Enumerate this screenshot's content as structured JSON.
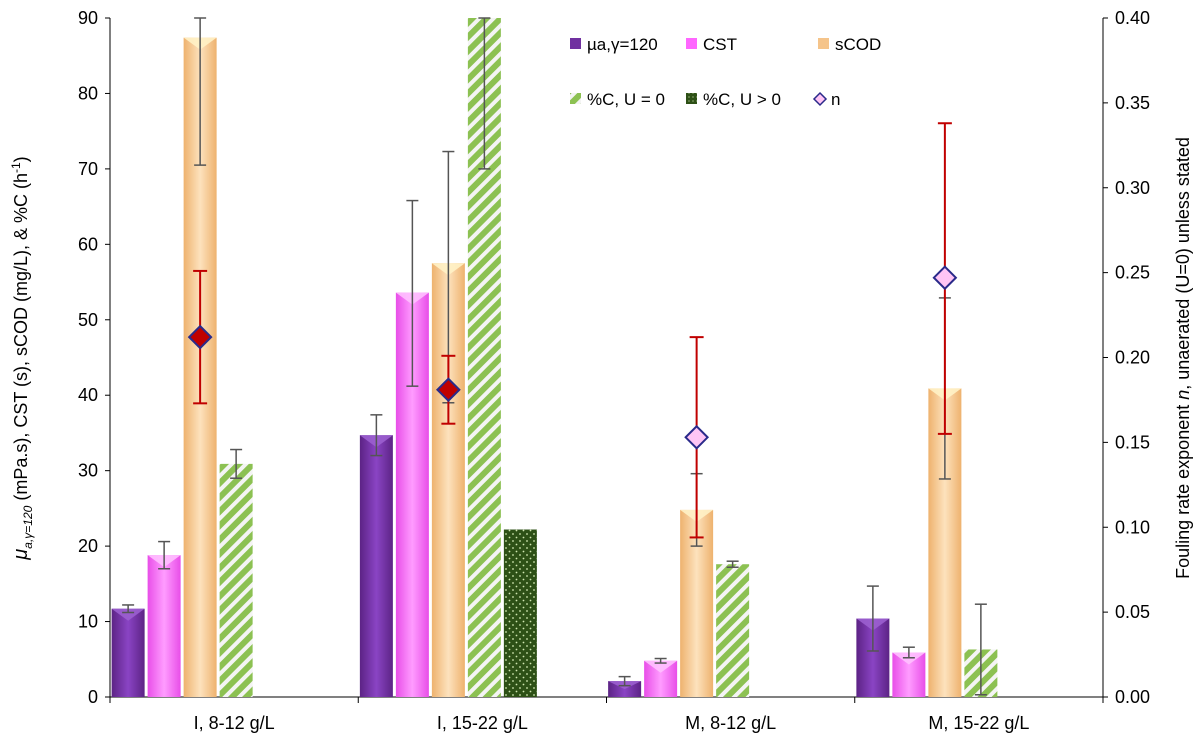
{
  "chart_data": {
    "type": "bar",
    "categories": [
      "I, 8-12 g/L",
      "I, 15-22 g/L",
      "M,  8-12 g/L",
      "M,  15-22 g/L"
    ],
    "series": [
      {
        "name": "µa,γ=120",
        "axis": "left",
        "color": "#7030a0",
        "values": [
          11.7,
          34.7,
          2.1,
          10.4
        ],
        "err_low": [
          0.5,
          2.7,
          0.6,
          4.3
        ],
        "err_high": [
          0.5,
          2.7,
          0.6,
          4.3
        ]
      },
      {
        "name": "CST",
        "axis": "left",
        "color": "#ff66ff",
        "values": [
          18.8,
          53.6,
          4.8,
          5.9
        ],
        "err_low": [
          1.8,
          12.4,
          0.3,
          0.7
        ],
        "err_high": [
          1.8,
          12.2,
          0.3,
          0.7
        ]
      },
      {
        "name": "sCOD",
        "axis": "left",
        "color": "#f5c48a",
        "values": [
          87.4,
          57.5,
          24.8,
          40.9
        ],
        "err_low": [
          16.9,
          18.5,
          4.8,
          12.0
        ],
        "err_high": [
          2.6,
          14.8,
          4.8,
          12.0
        ]
      },
      {
        "name": "%C, U = 0",
        "axis": "left",
        "color": "#8cc152",
        "values": [
          30.9,
          90.0,
          17.6,
          6.3
        ],
        "err_low": [
          1.9,
          20.0,
          0.4,
          6.0
        ],
        "err_high": [
          1.9,
          0,
          0.4,
          6.0
        ]
      },
      {
        "name": "%C, U > 0",
        "axis": "left",
        "color": "#2d5016",
        "values": [
          null,
          22.2,
          null,
          null
        ],
        "err_low": [
          0,
          0,
          0,
          0
        ],
        "err_high": [
          0,
          0,
          0,
          0
        ]
      }
    ],
    "markers": {
      "name": "n",
      "axis": "right",
      "values": [
        0.212,
        0.181,
        0.153,
        0.247
      ],
      "err_low": [
        0.039,
        0.02,
        0.059,
        0.092
      ],
      "err_high": [
        0.039,
        0.02,
        0.059,
        0.091
      ],
      "colors": [
        "#c00000",
        "#c00000",
        "#ffc5f5",
        "#ffc5f5"
      ],
      "err_color": "#c00000"
    },
    "ylabel_left_mu": "μ",
    "ylabel_left_sub": "a,γ=120",
    "ylabel_left_rest": " (mPa.s), CST (s), sCOD (mg/L), & %C (h",
    "ylabel_left_sup": "-1",
    "ylabel_left_close": ")",
    "ylabel_right_a": "Fouling rate exponent ",
    "ylabel_right_n": "n",
    "ylabel_right_b": ", unaerated (U=0) unless stated",
    "ylim_left": [
      0,
      90
    ],
    "yticks_left": [
      "0",
      "10",
      "20",
      "30",
      "40",
      "50",
      "60",
      "70",
      "80",
      "90"
    ],
    "ylim_right": [
      0,
      0.4
    ],
    "yticks_right": [
      "0.00",
      "0.05",
      "0.10",
      "0.15",
      "0.20",
      "0.25",
      "0.30",
      "0.35",
      "0.40"
    ],
    "grid": false,
    "legend_position": "top-center"
  }
}
